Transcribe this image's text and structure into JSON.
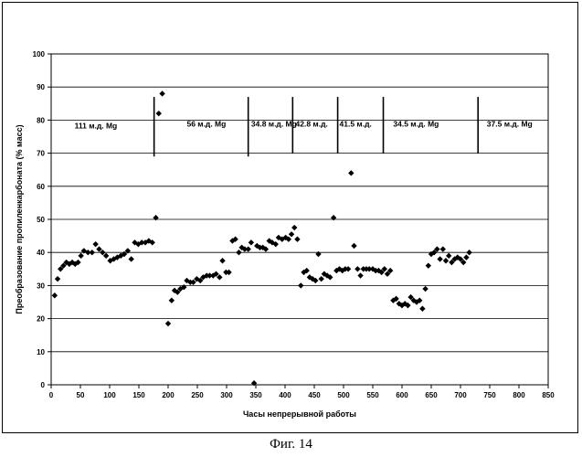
{
  "chart_data": {
    "type": "scatter",
    "xlabel": "Часы непрерывной работы",
    "ylabel": "Преобразование пропиленкарбоната (% масс)",
    "xlim": [
      0,
      850
    ],
    "ylim": [
      0,
      100
    ],
    "x_ticks": [
      0,
      50,
      100,
      150,
      200,
      250,
      300,
      350,
      400,
      450,
      500,
      550,
      600,
      650,
      700,
      750,
      800,
      850
    ],
    "y_ticks": [
      0,
      10,
      20,
      30,
      40,
      50,
      60,
      70,
      80,
      90,
      100
    ],
    "grid": "horizontal",
    "marker": "diamond",
    "marker_color": "#000000",
    "points": [
      [
        6,
        27
      ],
      [
        11,
        32
      ],
      [
        16,
        35
      ],
      [
        21,
        36
      ],
      [
        26,
        37
      ],
      [
        31,
        36.5
      ],
      [
        36,
        37
      ],
      [
        41,
        36.5
      ],
      [
        46,
        37
      ],
      [
        51,
        39
      ],
      [
        56,
        40.5
      ],
      [
        63,
        40
      ],
      [
        70,
        40
      ],
      [
        76,
        42.5
      ],
      [
        82,
        41
      ],
      [
        88,
        40
      ],
      [
        94,
        39
      ],
      [
        101,
        37.5
      ],
      [
        107,
        38
      ],
      [
        113,
        38.5
      ],
      [
        119,
        39
      ],
      [
        125,
        39.5
      ],
      [
        131,
        40.5
      ],
      [
        137,
        38
      ],
      [
        143,
        43
      ],
      [
        149,
        42.5
      ],
      [
        155,
        43
      ],
      [
        161,
        43
      ],
      [
        167,
        43.5
      ],
      [
        173,
        43
      ],
      [
        179,
        50.5
      ],
      [
        184,
        82
      ],
      [
        190,
        88
      ],
      [
        200,
        18.5
      ],
      [
        206,
        25.5
      ],
      [
        211,
        28.5
      ],
      [
        216,
        28
      ],
      [
        221,
        29
      ],
      [
        227,
        29.5
      ],
      [
        232,
        31.5
      ],
      [
        238,
        31
      ],
      [
        243,
        31
      ],
      [
        249,
        32
      ],
      [
        255,
        31.5
      ],
      [
        260,
        32.5
      ],
      [
        266,
        33
      ],
      [
        271,
        33
      ],
      [
        277,
        33
      ],
      [
        282,
        33.5
      ],
      [
        288,
        32.5
      ],
      [
        293,
        37.5
      ],
      [
        299,
        34
      ],
      [
        304,
        34
      ],
      [
        310,
        43.5
      ],
      [
        315,
        44
      ],
      [
        321,
        40
      ],
      [
        326,
        41.5
      ],
      [
        331,
        41
      ],
      [
        337,
        41
      ],
      [
        342,
        43
      ],
      [
        347,
        0.5
      ],
      [
        352,
        42
      ],
      [
        357,
        41.5
      ],
      [
        362,
        41.5
      ],
      [
        367,
        41
      ],
      [
        373,
        43.5
      ],
      [
        378,
        43
      ],
      [
        384,
        42.5
      ],
      [
        389,
        44.5
      ],
      [
        395,
        44
      ],
      [
        401,
        44.5
      ],
      [
        406,
        44
      ],
      [
        411,
        45.5
      ],
      [
        416,
        47.5
      ],
      [
        421,
        44
      ],
      [
        427,
        30
      ],
      [
        432,
        34
      ],
      [
        437,
        34.5
      ],
      [
        442,
        32.5
      ],
      [
        447,
        32
      ],
      [
        452,
        31.5
      ],
      [
        457,
        39.5
      ],
      [
        462,
        32
      ],
      [
        467,
        33.5
      ],
      [
        472,
        33
      ],
      [
        477,
        32.5
      ],
      [
        483,
        50.5
      ],
      [
        488,
        34.5
      ],
      [
        493,
        35
      ],
      [
        498,
        34.5
      ],
      [
        503,
        35
      ],
      [
        508,
        35
      ],
      [
        513,
        64
      ],
      [
        518,
        42
      ],
      [
        524,
        35
      ],
      [
        529,
        33
      ],
      [
        534,
        35
      ],
      [
        539,
        35
      ],
      [
        544,
        35
      ],
      [
        550,
        35
      ],
      [
        555,
        34.5
      ],
      [
        560,
        34.5
      ],
      [
        565,
        34
      ],
      [
        570,
        35
      ],
      [
        575,
        33.5
      ],
      [
        580,
        34.5
      ],
      [
        585,
        25.5
      ],
      [
        590,
        26
      ],
      [
        595,
        24.5
      ],
      [
        600,
        24
      ],
      [
        605,
        24.5
      ],
      [
        610,
        24
      ],
      [
        615,
        26.5
      ],
      [
        620,
        25.5
      ],
      [
        625,
        25
      ],
      [
        630,
        25.5
      ],
      [
        635,
        23
      ],
      [
        640,
        29
      ],
      [
        645,
        36
      ],
      [
        650,
        39.5
      ],
      [
        655,
        40
      ],
      [
        660,
        41
      ],
      [
        665,
        38
      ],
      [
        670,
        41
      ],
      [
        675,
        37.5
      ],
      [
        680,
        39
      ],
      [
        685,
        37
      ],
      [
        690,
        38
      ],
      [
        695,
        38.5
      ],
      [
        700,
        38
      ],
      [
        705,
        37
      ],
      [
        710,
        38.5
      ],
      [
        715,
        40
      ]
    ],
    "dividers": [
      {
        "x": 176,
        "y_from": 69,
        "y_to": 87
      },
      {
        "x": 337,
        "y_from": 69,
        "y_to": 87
      },
      {
        "x": 413,
        "y_from": 70,
        "y_to": 87
      },
      {
        "x": 490,
        "y_from": 70,
        "y_to": 87
      },
      {
        "x": 568,
        "y_from": 70,
        "y_to": 87
      },
      {
        "x": 730,
        "y_from": 70,
        "y_to": 87
      }
    ],
    "annotations": [
      {
        "text": "111 м.д. Mg",
        "x": 40,
        "y": 77.5
      },
      {
        "text": "56 м.д. Mg",
        "x": 232,
        "y": 78
      },
      {
        "text": "34.8 м.д. Mg",
        "x": 342,
        "y": 78
      },
      {
        "text": "42.8 м.д.",
        "x": 418,
        "y": 78
      },
      {
        "text": "41.5 м.д.",
        "x": 493,
        "y": 78
      },
      {
        "text": "34.5 м.д. Mg",
        "x": 585,
        "y": 78
      },
      {
        "text": "37.5 м.д. Mg",
        "x": 745,
        "y": 78
      }
    ]
  },
  "caption": "Фиг. 14"
}
